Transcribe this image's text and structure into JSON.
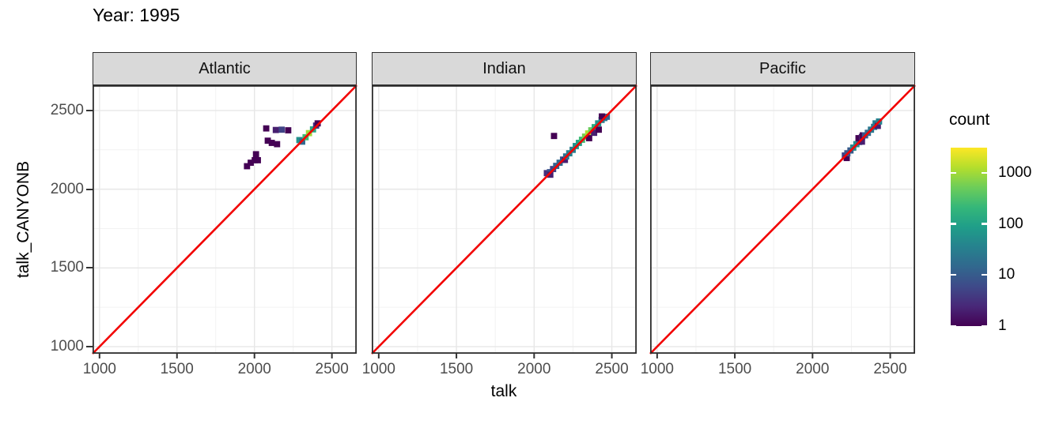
{
  "title": "Year: 1995",
  "axes": {
    "x_title": "talk",
    "y_title": "talk_CANYONB"
  },
  "legend": {
    "title": "count",
    "log_max": 3.5,
    "ticks": [
      {
        "label": "1",
        "value": 1
      },
      {
        "label": "10",
        "value": 10
      },
      {
        "label": "100",
        "value": 100
      },
      {
        "label": "1000",
        "value": 1000
      }
    ]
  },
  "colors": {
    "red_line": "#F20000",
    "strip_bg": "#D9D9D9",
    "panel_bg": "#FFFFFF",
    "panel_border": "#2D2D2D",
    "grid_major": "#E7E7E7",
    "grid_minor": "#F2F2F2",
    "axis_text": "#4D4D4D",
    "tick_mark": "#333333",
    "viridis": [
      "#440154",
      "#482878",
      "#3E4A89",
      "#31688E",
      "#26828E",
      "#1F9E89",
      "#35B779",
      "#6DCD59",
      "#B4DE2C",
      "#FDE725"
    ]
  },
  "chart_data": {
    "type": "heatmap",
    "subtype": "2d-binned scatter (geom_bin2d) faceted by ocean, with y=x reference line",
    "title": "Year: 1995",
    "xlabel": "talk",
    "ylabel": "talk_CANYONB",
    "xlim": [
      955,
      2660
    ],
    "ylim": [
      955,
      2660
    ],
    "x_ticks": [
      1000,
      1500,
      2000,
      2500
    ],
    "y_ticks": [
      1000,
      1500,
      2000,
      2500
    ],
    "x_minor_ticks": [
      1250,
      1750,
      2250
    ],
    "y_minor_ticks": [
      1250,
      1750,
      2250
    ],
    "grid": true,
    "legend_position": "right",
    "color_scale": {
      "palette": "viridis",
      "title": "count",
      "transform": "log10",
      "ticks": [
        1,
        10,
        100,
        1000
      ],
      "max": 3000
    },
    "reference_line": {
      "type": "abline",
      "slope": 1,
      "intercept": 0,
      "color": "#F20000"
    },
    "bin_size_units": 40,
    "facets": [
      {
        "label": "Atlantic",
        "bins": [
          [
            1952,
            2146,
            1
          ],
          [
            1976,
            2168,
            1
          ],
          [
            2002,
            2184,
            1
          ],
          [
            2022,
            2184,
            1
          ],
          [
            2010,
            2222,
            1
          ],
          [
            2086,
            2308,
            1
          ],
          [
            2112,
            2294,
            1
          ],
          [
            2146,
            2286,
            1
          ],
          [
            2076,
            2386,
            1
          ],
          [
            2138,
            2376,
            2
          ],
          [
            2176,
            2378,
            5
          ],
          [
            2218,
            2374,
            1
          ],
          [
            2290,
            2312,
            60
          ],
          [
            2308,
            2302,
            15
          ],
          [
            2330,
            2330,
            250
          ],
          [
            2352,
            2356,
            1000
          ],
          [
            2378,
            2380,
            120
          ],
          [
            2398,
            2404,
            3
          ],
          [
            2408,
            2418,
            1
          ]
        ]
      },
      {
        "label": "Indian",
        "bins": [
          [
            2082,
            2102,
            3
          ],
          [
            2102,
            2108,
            8
          ],
          [
            2104,
            2092,
            2
          ],
          [
            2122,
            2128,
            5
          ],
          [
            2142,
            2148,
            12
          ],
          [
            2164,
            2168,
            15
          ],
          [
            2186,
            2188,
            10
          ],
          [
            2198,
            2186,
            2
          ],
          [
            2206,
            2208,
            20
          ],
          [
            2226,
            2228,
            35
          ],
          [
            2248,
            2250,
            30
          ],
          [
            2268,
            2274,
            60
          ],
          [
            2288,
            2294,
            100
          ],
          [
            2308,
            2314,
            250
          ],
          [
            2328,
            2334,
            600
          ],
          [
            2348,
            2354,
            1200
          ],
          [
            2368,
            2374,
            500
          ],
          [
            2390,
            2394,
            150
          ],
          [
            2412,
            2418,
            60
          ],
          [
            2434,
            2440,
            35
          ],
          [
            2452,
            2452,
            25
          ],
          [
            2468,
            2460,
            12
          ],
          [
            2128,
            2338,
            1
          ],
          [
            2354,
            2324,
            1
          ],
          [
            2386,
            2358,
            2
          ],
          [
            2416,
            2378,
            1
          ],
          [
            2436,
            2462,
            1
          ]
        ]
      },
      {
        "label": "Pacific",
        "bins": [
          [
            2208,
            2214,
            5
          ],
          [
            2220,
            2198,
            1
          ],
          [
            2224,
            2228,
            8
          ],
          [
            2244,
            2246,
            10
          ],
          [
            2262,
            2264,
            40
          ],
          [
            2282,
            2286,
            50
          ],
          [
            2300,
            2300,
            12
          ],
          [
            2318,
            2302,
            2
          ],
          [
            2296,
            2324,
            1
          ],
          [
            2318,
            2332,
            2
          ],
          [
            2324,
            2342,
            1
          ],
          [
            2338,
            2342,
            8
          ],
          [
            2356,
            2358,
            15
          ],
          [
            2376,
            2378,
            25
          ],
          [
            2396,
            2396,
            20
          ],
          [
            2406,
            2418,
            30
          ],
          [
            2420,
            2402,
            2
          ],
          [
            2428,
            2430,
            35
          ]
        ]
      }
    ]
  }
}
